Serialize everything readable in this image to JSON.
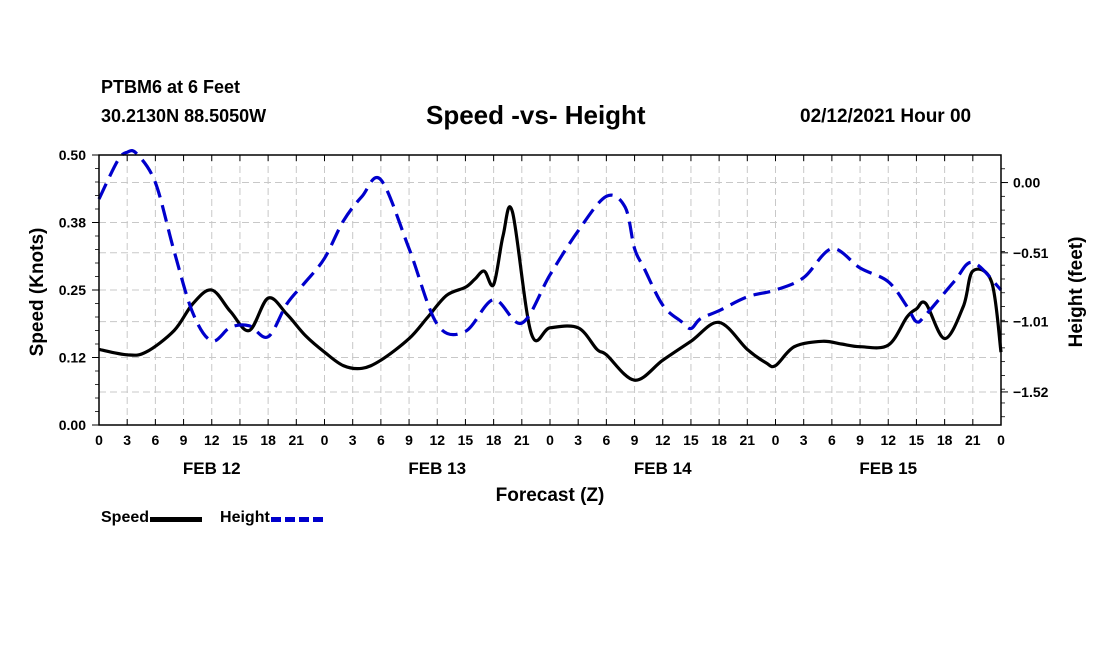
{
  "header": {
    "station": "PTBM6 at 6 Feet",
    "coords": "30.2130N 88.5050W",
    "title": "Speed -vs- Height",
    "datetime": "02/12/2021 Hour 00"
  },
  "legend": {
    "speed_label": "Speed",
    "height_label": "Height"
  },
  "colors": {
    "speed": "#000000",
    "height": "#0000cc",
    "grid": "#c8c8c8"
  },
  "chart_data": {
    "type": "line",
    "title": "Speed -vs- Height",
    "xlabel": "Forecast (Z)",
    "ylabel_left": "Speed (Knots)",
    "ylabel_right": "Height (feet)",
    "x_range": [
      0,
      96
    ],
    "x_tick_labels": [
      "0",
      "3",
      "6",
      "9",
      "12",
      "15",
      "18",
      "21",
      "0",
      "3",
      "6",
      "9",
      "12",
      "15",
      "18",
      "21",
      "0",
      "3",
      "6",
      "9",
      "12",
      "15",
      "18",
      "21",
      "0",
      "3",
      "6",
      "9",
      "12",
      "15",
      "18",
      "21",
      "0"
    ],
    "day_labels": [
      {
        "label": "FEB 12",
        "hour": 12
      },
      {
        "label": "FEB 13",
        "hour": 36
      },
      {
        "label": "FEB 14",
        "hour": 60
      },
      {
        "label": "FEB 15",
        "hour": 84
      }
    ],
    "y_left": {
      "range": [
        0,
        0.5
      ],
      "ticks": [
        0,
        0.125,
        0.25,
        0.375,
        0.5
      ],
      "tick_labels": [
        "0.00",
        "0.12",
        "0.25",
        "0.38",
        "0.50"
      ]
    },
    "y_right": {
      "range": [
        -1.76,
        0.2
      ],
      "ticks": [
        0.0,
        -0.51,
        -1.01,
        -1.52
      ],
      "tick_labels": [
        "0.00",
        "−0.51",
        "−1.01",
        "−1.52"
      ]
    },
    "grid": true,
    "legend_position": "bottom-left",
    "series": [
      {
        "name": "Speed",
        "axis": "left",
        "style": "solid",
        "x": [
          0,
          3,
          5,
          8,
          10,
          12,
          14,
          16,
          18,
          20,
          22,
          24,
          26,
          28,
          30,
          33,
          35,
          37,
          39,
          40,
          41,
          42,
          43,
          44,
          46,
          48,
          51,
          53,
          54,
          57,
          60,
          63,
          66,
          69,
          71,
          72,
          74,
          77,
          79,
          81,
          84,
          86,
          87,
          88,
          90,
          92,
          93,
          95,
          96
        ],
        "values": [
          0.14,
          0.13,
          0.135,
          0.175,
          0.225,
          0.25,
          0.21,
          0.175,
          0.235,
          0.205,
          0.165,
          0.135,
          0.11,
          0.105,
          0.12,
          0.16,
          0.2,
          0.24,
          0.255,
          0.27,
          0.285,
          0.26,
          0.35,
          0.395,
          0.17,
          0.18,
          0.18,
          0.14,
          0.13,
          0.083,
          0.12,
          0.155,
          0.19,
          0.14,
          0.115,
          0.11,
          0.145,
          0.155,
          0.15,
          0.145,
          0.148,
          0.2,
          0.215,
          0.225,
          0.16,
          0.22,
          0.285,
          0.265,
          0.135
        ]
      },
      {
        "name": "Height",
        "axis": "right",
        "style": "dashed",
        "x": [
          0,
          2,
          3,
          4,
          6,
          8,
          10,
          12,
          14,
          16,
          18,
          20,
          22,
          24,
          26,
          28,
          30,
          33,
          36,
          39,
          42,
          45,
          48,
          51,
          54,
          56,
          57,
          58,
          60,
          62,
          63,
          64,
          66,
          69,
          72,
          75,
          78,
          81,
          84,
          86,
          87,
          88,
          91,
          93,
          96
        ],
        "values": [
          -0.12,
          0.16,
          0.22,
          0.21,
          0.0,
          -0.5,
          -0.95,
          -1.15,
          -1.05,
          -1.04,
          -1.12,
          -0.88,
          -0.72,
          -0.55,
          -0.28,
          -0.1,
          0.02,
          -0.48,
          -1.03,
          -1.08,
          -0.85,
          -1.02,
          -0.67,
          -0.35,
          -0.1,
          -0.18,
          -0.48,
          -0.62,
          -0.89,
          -1.01,
          -1.06,
          -0.99,
          -0.93,
          -0.83,
          -0.78,
          -0.69,
          -0.48,
          -0.62,
          -0.72,
          -0.9,
          -1.01,
          -0.96,
          -0.72,
          -0.58,
          -0.78
        ]
      }
    ]
  }
}
